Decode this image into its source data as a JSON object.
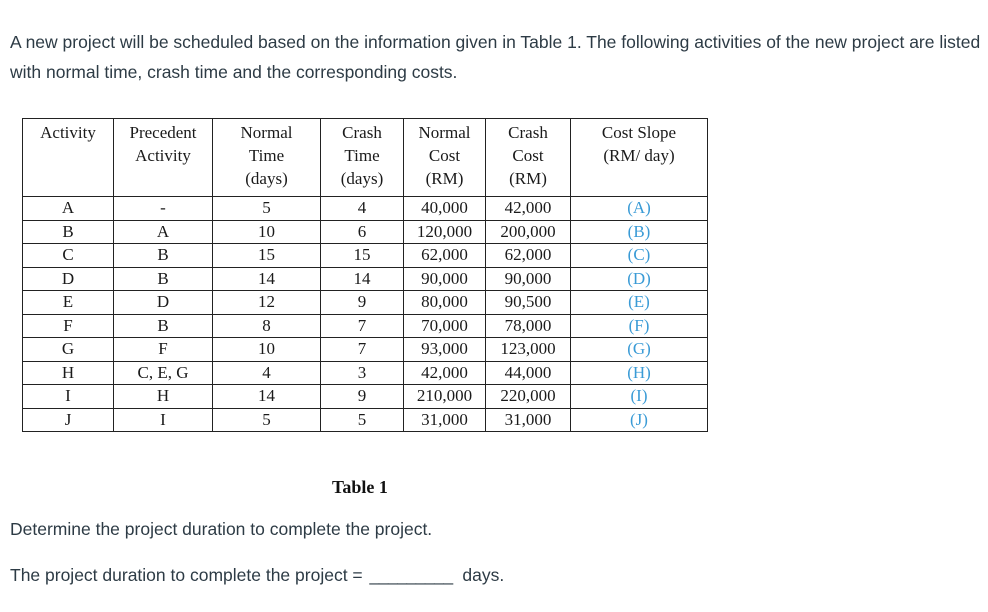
{
  "intro": {
    "text": "A new project will be scheduled based on the information given in Table 1. The following activities of the new project are listed with normal time, crash time and the corresponding costs."
  },
  "table": {
    "headers": [
      [
        "Activity"
      ],
      [
        "Precedent",
        "Activity"
      ],
      [
        "Normal",
        "Time",
        "(days)"
      ],
      [
        "Crash",
        "Time",
        "(days)"
      ],
      [
        "Normal",
        "Cost",
        "(RM)"
      ],
      [
        "Crash",
        "Cost",
        "(RM)"
      ],
      [
        "Cost Slope",
        "(RM/ day)"
      ]
    ],
    "rows": [
      {
        "activity": "A",
        "precedent": "-",
        "normal_time": "5",
        "crash_time": "4",
        "normal_cost": "40,000",
        "crash_cost": "42,000",
        "cost_slope": "(A)"
      },
      {
        "activity": "B",
        "precedent": "A",
        "normal_time": "10",
        "crash_time": "6",
        "normal_cost": "120,000",
        "crash_cost": "200,000",
        "cost_slope": "(B)"
      },
      {
        "activity": "C",
        "precedent": "B",
        "normal_time": "15",
        "crash_time": "15",
        "normal_cost": "62,000",
        "crash_cost": "62,000",
        "cost_slope": "(C)"
      },
      {
        "activity": "D",
        "precedent": "B",
        "normal_time": "14",
        "crash_time": "14",
        "normal_cost": "90,000",
        "crash_cost": "90,000",
        "cost_slope": "(D)"
      },
      {
        "activity": "E",
        "precedent": "D",
        "normal_time": "12",
        "crash_time": "9",
        "normal_cost": "80,000",
        "crash_cost": "90,500",
        "cost_slope": "(E)"
      },
      {
        "activity": "F",
        "precedent": "B",
        "normal_time": "8",
        "crash_time": "7",
        "normal_cost": "70,000",
        "crash_cost": "78,000",
        "cost_slope": "(F)"
      },
      {
        "activity": "G",
        "precedent": "F",
        "normal_time": "10",
        "crash_time": "7",
        "normal_cost": "93,000",
        "crash_cost": "123,000",
        "cost_slope": "(G)"
      },
      {
        "activity": "H",
        "precedent": "C, E, G",
        "normal_time": "4",
        "crash_time": "3",
        "normal_cost": "42,000",
        "crash_cost": "44,000",
        "cost_slope": "(H)"
      },
      {
        "activity": "I",
        "precedent": "H",
        "normal_time": "14",
        "crash_time": "9",
        "normal_cost": "210,000",
        "crash_cost": "220,000",
        "cost_slope": "(I)"
      },
      {
        "activity": "J",
        "precedent": "I",
        "normal_time": "5",
        "crash_time": "5",
        "normal_cost": "31,000",
        "crash_cost": "31,000",
        "cost_slope": "(J)"
      }
    ],
    "caption": "Table 1"
  },
  "question": {
    "text": "Determine the project duration to complete the project.",
    "answer_prefix": "The project duration to complete the project = ",
    "answer_blank": "_________",
    "answer_suffix": " days."
  },
  "colors": {
    "body_text": "#2d3b45",
    "cost_slope_text": "#3a9bd6",
    "table_border": "#222222"
  }
}
